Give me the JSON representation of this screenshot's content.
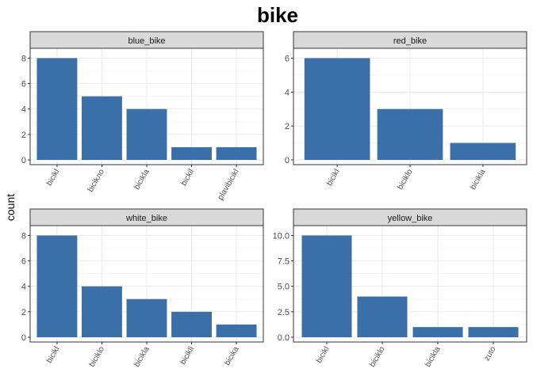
{
  "title": "bike",
  "ylabel": "count",
  "bar_color": "#3a6fa8",
  "chart_data": [
    {
      "type": "bar",
      "panel": "blue_bike",
      "categories": [
        "bicikl",
        "bicikло",
        "bicikla",
        "bickil",
        "plavibicikl"
      ],
      "values": [
        8,
        5,
        4,
        1,
        1
      ],
      "ylim": [
        0,
        8.4
      ],
      "yticks": [
        0,
        2,
        4,
        6,
        8
      ],
      "ytick_labels": [
        "0",
        "2",
        "4",
        "6",
        "8"
      ],
      "grid": true
    },
    {
      "type": "bar",
      "panel": "red_bike",
      "categories": [
        "bicikl",
        "biciklo",
        "bicikla"
      ],
      "values": [
        6,
        3,
        1
      ],
      "ylim": [
        0,
        6.3
      ],
      "yticks": [
        0,
        2,
        4,
        6
      ],
      "ytick_labels": [
        "0",
        "2",
        "4",
        "6"
      ],
      "grid": true
    },
    {
      "type": "bar",
      "panel": "white_bike",
      "categories": [
        "bicikl",
        "biciklo",
        "bicikla",
        "bicikli",
        "bicika"
      ],
      "values": [
        8,
        4,
        3,
        2,
        1
      ],
      "ylim": [
        0,
        8.4
      ],
      "yticks": [
        0,
        2,
        4,
        6,
        8
      ],
      "ytick_labels": [
        "0",
        "2",
        "4",
        "6",
        "8"
      ],
      "grid": true
    },
    {
      "type": "bar",
      "panel": "yellow_bike",
      "categories": [
        "bicikl",
        "biciklo",
        "bicikla",
        "zuto"
      ],
      "values": [
        10,
        4,
        1,
        1
      ],
      "ylim": [
        0,
        10.5
      ],
      "yticks": [
        0,
        2.5,
        5,
        7.5,
        10
      ],
      "ytick_labels": [
        "0.0",
        "2.5",
        "5.0",
        "7.5",
        "10.0"
      ],
      "grid": true
    }
  ]
}
